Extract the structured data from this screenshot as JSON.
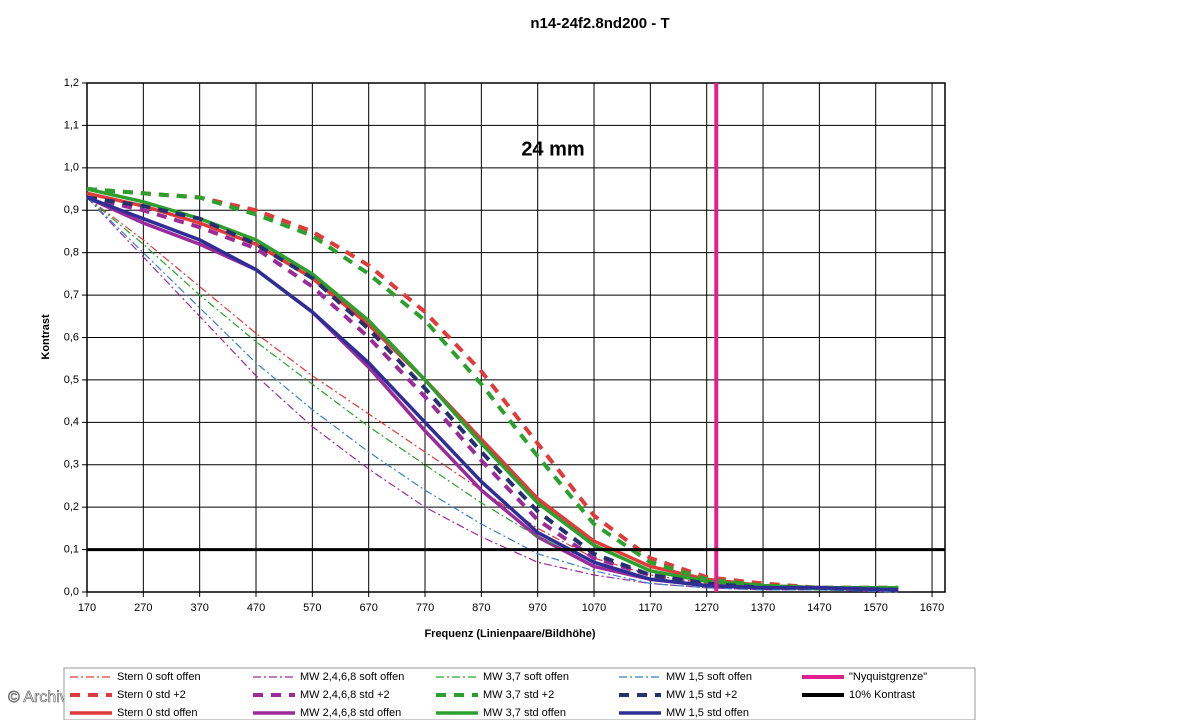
{
  "chart_data": {
    "type": "line",
    "title": "n14-24f2.8nd200 - T",
    "annotation": "24 mm",
    "xlabel": "Frequenz (Linienpaare/Bildhöhe)",
    "ylabel": "Kontrast",
    "watermark": "© Archiv",
    "grid": true,
    "xlim": [
      170,
      1693
    ],
    "ylim": [
      0,
      1.2
    ],
    "xticks": [
      170,
      270,
      370,
      470,
      570,
      670,
      770,
      870,
      970,
      1070,
      1170,
      1270,
      1370,
      1470,
      1570,
      1670
    ],
    "yticks": [
      {
        "value": 0,
        "label": "0,0"
      },
      {
        "value": 0.1,
        "label": "0,1"
      },
      {
        "value": 0.2,
        "label": "0,2"
      },
      {
        "value": 0.3,
        "label": "0,3"
      },
      {
        "value": 0.4,
        "label": "0,4"
      },
      {
        "value": 0.5,
        "label": "0,5"
      },
      {
        "value": 0.6,
        "label": "0,6"
      },
      {
        "value": 0.7,
        "label": "0,7"
      },
      {
        "value": 0.8,
        "label": "0,8"
      },
      {
        "value": 0.9,
        "label": "0,9"
      },
      {
        "value": 1.0,
        "label": "1,0"
      },
      {
        "value": 1.1,
        "label": "1,1"
      },
      {
        "value": 1.2,
        "label": "1,2"
      }
    ],
    "x": [
      170,
      270,
      370,
      470,
      570,
      670,
      770,
      870,
      970,
      1070,
      1170,
      1270,
      1370,
      1470,
      1610
    ],
    "series": [
      {
        "name": "Stern 0 soft offen",
        "color": "#e03a3a",
        "style": "dashdot",
        "values": [
          0.93,
          0.83,
          0.72,
          0.61,
          0.51,
          0.42,
          0.33,
          0.24,
          0.15,
          0.08,
          0.04,
          0.02,
          0.01,
          0.01,
          0.005
        ]
      },
      {
        "name": "Stern 0 std +2",
        "color": "#e03a3a",
        "style": "dashed",
        "values": [
          0.95,
          0.94,
          0.93,
          0.9,
          0.85,
          0.77,
          0.66,
          0.52,
          0.35,
          0.18,
          0.08,
          0.035,
          0.02,
          0.01,
          0.01
        ]
      },
      {
        "name": "Stern 0 std offen",
        "color": "#e03a3a",
        "style": "solid",
        "values": [
          0.94,
          0.91,
          0.87,
          0.82,
          0.74,
          0.63,
          0.5,
          0.36,
          0.22,
          0.12,
          0.06,
          0.03,
          0.015,
          0.01,
          0.01
        ]
      },
      {
        "name": "MW 2,4,6,8 soft offen",
        "color": "#9b2a9b",
        "style": "dashdot",
        "values": [
          0.93,
          0.79,
          0.65,
          0.51,
          0.39,
          0.29,
          0.2,
          0.13,
          0.07,
          0.04,
          0.02,
          0.01,
          0.005,
          0.005,
          0
        ]
      },
      {
        "name": "MW 2,4,6,8 std +2",
        "color": "#9b2a9b",
        "style": "dashed",
        "values": [
          0.93,
          0.9,
          0.86,
          0.81,
          0.72,
          0.6,
          0.46,
          0.31,
          0.17,
          0.08,
          0.04,
          0.02,
          0.01,
          0.01,
          0.005
        ]
      },
      {
        "name": "MW 2,4,6,8 std offen",
        "color": "#9b2a9b",
        "style": "solid",
        "values": [
          0.93,
          0.87,
          0.82,
          0.76,
          0.66,
          0.53,
          0.38,
          0.24,
          0.13,
          0.06,
          0.03,
          0.015,
          0.01,
          0.01,
          0.005
        ]
      },
      {
        "name": "MW 3,7 soft offen",
        "color": "#2ca02c",
        "style": "dashdot",
        "values": [
          0.93,
          0.82,
          0.7,
          0.59,
          0.49,
          0.39,
          0.3,
          0.21,
          0.13,
          0.07,
          0.03,
          0.015,
          0.01,
          0.005,
          0.005
        ]
      },
      {
        "name": "MW 3,7 std +2",
        "color": "#2ca02c",
        "style": "dashed",
        "values": [
          0.95,
          0.94,
          0.93,
          0.89,
          0.84,
          0.75,
          0.64,
          0.49,
          0.32,
          0.16,
          0.07,
          0.03,
          0.015,
          0.01,
          0.01
        ]
      },
      {
        "name": "MW 3,7 std offen",
        "color": "#2ca02c",
        "style": "solid",
        "values": [
          0.95,
          0.92,
          0.88,
          0.83,
          0.75,
          0.64,
          0.5,
          0.35,
          0.21,
          0.11,
          0.05,
          0.025,
          0.015,
          0.01,
          0.01
        ]
      },
      {
        "name": "MW 1,5 soft offen",
        "color": "#3a80c8",
        "style": "dashdot",
        "values": [
          0.93,
          0.8,
          0.67,
          0.54,
          0.43,
          0.33,
          0.24,
          0.16,
          0.09,
          0.05,
          0.02,
          0.01,
          0.005,
          0.005,
          0
        ]
      },
      {
        "name": "MW 1,5 std +2",
        "color": "#26306e",
        "style": "dashed",
        "values": [
          0.93,
          0.91,
          0.88,
          0.82,
          0.74,
          0.62,
          0.48,
          0.33,
          0.19,
          0.09,
          0.04,
          0.02,
          0.01,
          0.01,
          0.005
        ]
      },
      {
        "name": "MW 1,5 std offen",
        "color": "#2e2e96",
        "style": "solid",
        "values": [
          0.93,
          0.88,
          0.83,
          0.76,
          0.66,
          0.54,
          0.4,
          0.26,
          0.14,
          0.07,
          0.03,
          0.015,
          0.01,
          0.01,
          0.005
        ]
      }
    ],
    "reference_lines": [
      {
        "name": "\"Nyquistgrenze\"",
        "color": "#e0208c",
        "x": 1287
      },
      {
        "name": "10% Kontrast",
        "color": "#000000",
        "y": 0.1
      }
    ]
  }
}
